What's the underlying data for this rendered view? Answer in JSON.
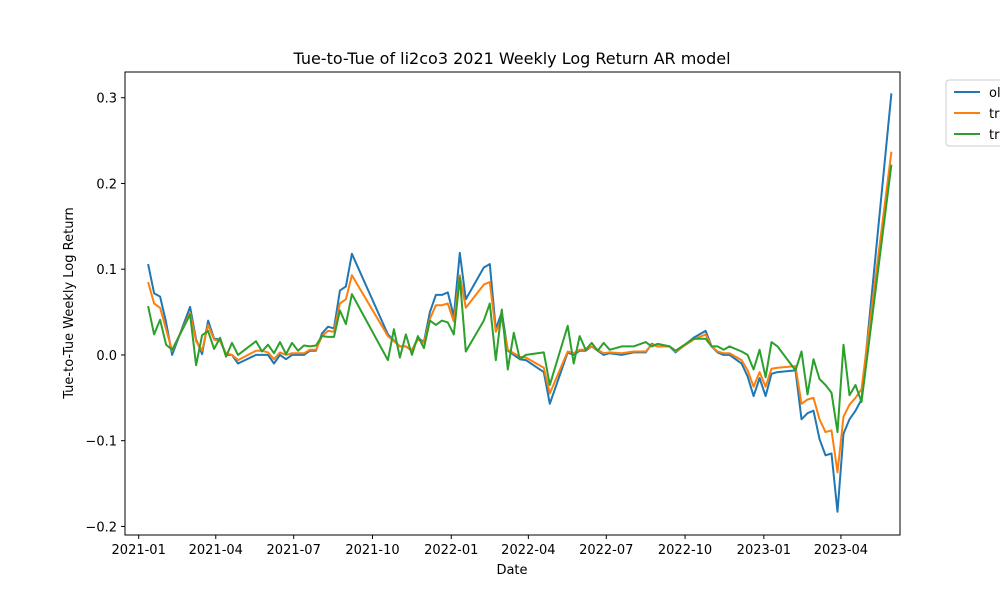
{
  "chart_data": {
    "type": "line",
    "title": "Tue-to-Tue of li2co3 2021 Weekly Log Return AR model",
    "xlabel": "Date",
    "ylabel": "Tue-to-Tue Weekly Log Return",
    "x_ticks": [
      "2021-01",
      "2021-04",
      "2021-07",
      "2021-10",
      "2022-01",
      "2022-04",
      "2022-07",
      "2022-10",
      "2023-01",
      "2023-04"
    ],
    "y_ticks": [
      "−0.2",
      "−0.1",
      "0.0",
      "0.1",
      "0.2",
      "0.3"
    ],
    "xlim": [
      "2020-12-16",
      "2023-06-09"
    ],
    "ylim": [
      -0.21,
      0.33
    ],
    "grid": false,
    "legend_position": "outside-top-right",
    "legend_labels": [
      "ol",
      "tr",
      "tr"
    ],
    "x": [
      "2021-01-12",
      "2021-01-19",
      "2021-01-26",
      "2021-02-02",
      "2021-02-09",
      "2021-03-02",
      "2021-03-09",
      "2021-03-16",
      "2021-03-23",
      "2021-03-30",
      "2021-04-06",
      "2021-04-13",
      "2021-04-20",
      "2021-04-27",
      "2021-05-18",
      "2021-05-25",
      "2021-06-01",
      "2021-06-08",
      "2021-06-15",
      "2021-06-22",
      "2021-06-29",
      "2021-07-06",
      "2021-07-13",
      "2021-07-20",
      "2021-07-27",
      "2021-08-03",
      "2021-08-10",
      "2021-08-17",
      "2021-08-24",
      "2021-08-31",
      "2021-09-07",
      "2021-10-19",
      "2021-10-26",
      "2021-11-02",
      "2021-11-09",
      "2021-11-16",
      "2021-11-23",
      "2021-11-30",
      "2021-12-07",
      "2021-12-14",
      "2021-12-21",
      "2021-12-28",
      "2022-01-04",
      "2022-01-11",
      "2022-01-18",
      "2022-02-08",
      "2022-02-15",
      "2022-02-22",
      "2022-03-01",
      "2022-03-08",
      "2022-03-15",
      "2022-03-22",
      "2022-03-29",
      "2022-04-19",
      "2022-04-26",
      "2022-05-17",
      "2022-05-24",
      "2022-05-31",
      "2022-06-07",
      "2022-06-14",
      "2022-06-21",
      "2022-06-28",
      "2022-07-05",
      "2022-07-19",
      "2022-08-02",
      "2022-08-16",
      "2022-08-23",
      "2022-08-30",
      "2022-09-13",
      "2022-09-20",
      "2022-10-11",
      "2022-10-25",
      "2022-11-01",
      "2022-11-08",
      "2022-11-15",
      "2022-11-22",
      "2022-12-06",
      "2022-12-13",
      "2022-12-20",
      "2022-12-27",
      "2023-01-03",
      "2023-01-10",
      "2023-01-17",
      "2023-02-07",
      "2023-02-14",
      "2023-02-21",
      "2023-02-28",
      "2023-03-07",
      "2023-03-14",
      "2023-03-21",
      "2023-03-28",
      "2023-04-04",
      "2023-04-11",
      "2023-04-18",
      "2023-04-25",
      "2023-05-30"
    ],
    "series": [
      {
        "name": "ol",
        "color": "#1f77b4",
        "values": [
          0.106,
          0.072,
          0.068,
          0.038,
          0.0,
          0.056,
          0.018,
          0.001,
          0.04,
          0.019,
          0.018,
          0.0,
          0.0,
          -0.01,
          0.0,
          0.0,
          0.0,
          -0.01,
          0.0,
          -0.005,
          0.0,
          0.0,
          0.0,
          0.005,
          0.005,
          0.025,
          0.033,
          0.031,
          0.075,
          0.08,
          0.118,
          0.024,
          0.017,
          0.01,
          0.01,
          0.005,
          0.02,
          0.015,
          0.05,
          0.07,
          0.07,
          0.073,
          0.045,
          0.119,
          0.065,
          0.102,
          0.106,
          0.03,
          0.05,
          0.005,
          0.0,
          -0.005,
          -0.006,
          -0.02,
          -0.057,
          0.003,
          0.0,
          0.005,
          0.005,
          0.01,
          0.005,
          0.0,
          0.002,
          0.0,
          0.003,
          0.003,
          0.013,
          0.01,
          0.01,
          0.003,
          0.02,
          0.028,
          0.01,
          0.003,
          0.0,
          0.0,
          -0.01,
          -0.025,
          -0.048,
          -0.027,
          -0.048,
          -0.022,
          -0.02,
          -0.018,
          -0.075,
          -0.068,
          -0.065,
          -0.098,
          -0.117,
          -0.115,
          -0.183,
          -0.092,
          -0.075,
          -0.065,
          -0.052,
          0.305
        ]
      },
      {
        "name": "tr",
        "color": "#ff7f0e",
        "values": [
          0.085,
          0.06,
          0.055,
          0.03,
          0.005,
          0.049,
          0.016,
          0.005,
          0.035,
          0.018,
          0.016,
          0.002,
          0.0,
          -0.006,
          0.005,
          0.005,
          0.003,
          -0.005,
          0.003,
          0.0,
          0.002,
          0.002,
          0.002,
          0.006,
          0.006,
          0.022,
          0.028,
          0.027,
          0.06,
          0.065,
          0.093,
          0.022,
          0.016,
          0.01,
          0.01,
          0.006,
          0.018,
          0.014,
          0.042,
          0.058,
          0.058,
          0.06,
          0.039,
          0.093,
          0.055,
          0.082,
          0.085,
          0.027,
          0.042,
          0.006,
          0.002,
          -0.002,
          -0.003,
          -0.015,
          -0.045,
          0.004,
          0.002,
          0.006,
          0.006,
          0.01,
          0.006,
          0.002,
          0.003,
          0.002,
          0.004,
          0.004,
          0.012,
          0.01,
          0.01,
          0.004,
          0.018,
          0.024,
          0.01,
          0.004,
          0.002,
          0.002,
          -0.006,
          -0.018,
          -0.037,
          -0.02,
          -0.037,
          -0.016,
          -0.015,
          -0.013,
          -0.057,
          -0.052,
          -0.05,
          -0.075,
          -0.09,
          -0.088,
          -0.137,
          -0.072,
          -0.058,
          -0.05,
          -0.04,
          0.237
        ]
      },
      {
        "name": "tr",
        "color": "#2ca02c",
        "values": [
          0.057,
          0.024,
          0.041,
          0.012,
          0.006,
          0.047,
          -0.012,
          0.023,
          0.028,
          0.007,
          0.02,
          -0.002,
          0.014,
          0.0,
          0.016,
          0.004,
          0.012,
          0.002,
          0.015,
          0.001,
          0.014,
          0.005,
          0.011,
          0.01,
          0.011,
          0.022,
          0.021,
          0.021,
          0.052,
          0.036,
          0.071,
          -0.006,
          0.03,
          -0.003,
          0.024,
          0.0,
          0.022,
          0.008,
          0.04,
          0.035,
          0.04,
          0.038,
          0.024,
          0.09,
          0.004,
          0.04,
          0.06,
          -0.006,
          0.053,
          -0.017,
          0.026,
          -0.005,
          0.0,
          0.003,
          -0.035,
          0.034,
          -0.01,
          0.022,
          0.006,
          0.014,
          0.005,
          0.014,
          0.006,
          0.01,
          0.01,
          0.015,
          0.01,
          0.013,
          0.01,
          0.005,
          0.019,
          0.019,
          0.01,
          0.01,
          0.006,
          0.01,
          0.004,
          0.0,
          -0.017,
          0.006,
          -0.026,
          0.015,
          0.01,
          -0.018,
          0.004,
          -0.046,
          -0.005,
          -0.028,
          -0.035,
          -0.044,
          -0.09,
          0.012,
          -0.047,
          -0.035,
          -0.055,
          0.222
        ]
      }
    ]
  }
}
